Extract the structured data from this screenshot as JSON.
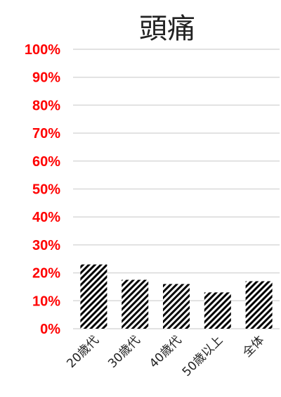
{
  "chart_data": {
    "type": "bar",
    "title": "頭痛",
    "xlabel": "",
    "ylabel": "",
    "categories": [
      "20歳代",
      "30歳代",
      "40歳代",
      "50歳以上",
      "全体"
    ],
    "values": [
      23,
      17.5,
      16,
      13,
      17
    ],
    "ylim": [
      0,
      100
    ],
    "ytick_values": [
      0,
      10,
      20,
      30,
      40,
      50,
      60,
      70,
      80,
      90,
      100
    ],
    "ytick_labels": [
      "0%",
      "10%",
      "20%",
      "30%",
      "40%",
      "50%",
      "60%",
      "70%",
      "80%",
      "90%",
      "100%"
    ],
    "grid": true,
    "legend": "none",
    "colors": {
      "tick_label": "#ff0000",
      "gridline": "#d9d9d9",
      "bar_pattern": "#000000",
      "bar_background": "#ffffff"
    }
  }
}
